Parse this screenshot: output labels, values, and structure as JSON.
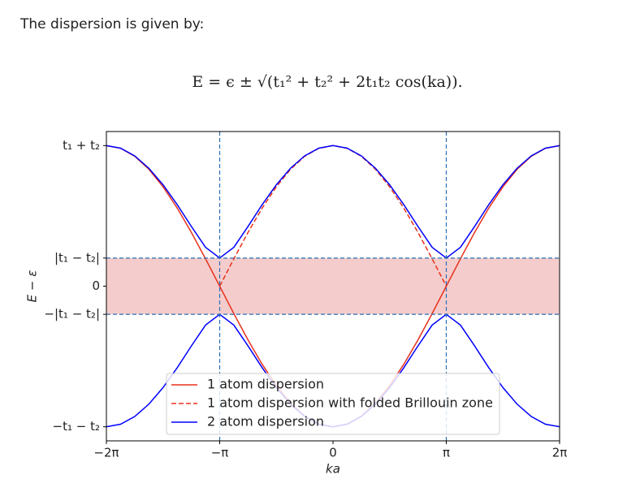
{
  "text": "The dispersion is given by:",
  "equation": "E = ϵ ± √(t₁² + t₂² + 2t₁t₂ cos(ka)).",
  "chart_data": {
    "type": "line",
    "xlabel": "ka",
    "ylabel": "E − ε",
    "x": [
      -6.283185,
      -5.890486,
      -5.497787,
      -5.105088,
      -4.712389,
      -4.31969,
      -3.926991,
      -3.534292,
      -3.141593,
      -2.748894,
      -2.356194,
      -1.963495,
      -1.570796,
      -1.178097,
      -0.785398,
      -0.392699,
      0,
      0.392699,
      0.785398,
      1.178097,
      1.570796,
      1.963495,
      2.356194,
      2.748894,
      3.141593,
      3.534292,
      3.926991,
      4.31969,
      4.712389,
      5.105088,
      5.497787,
      5.890486,
      6.283185
    ],
    "series": [
      {
        "name": "1 atom dispersion",
        "color": "#e8311c",
        "linestyle": "solid",
        "values": [
          1,
          0.98079,
          0.92388,
          0.83147,
          0.70711,
          0.55557,
          0.38268,
          0.19509,
          0,
          -0.19509,
          -0.38268,
          -0.55557,
          -0.70711,
          -0.83147,
          -0.92388,
          -0.98079,
          -1,
          -0.98079,
          -0.92388,
          -0.83147,
          -0.70711,
          -0.55557,
          -0.38268,
          -0.19509,
          0,
          0.19509,
          0.38268,
          0.55557,
          0.70711,
          0.83147,
          0.92388,
          0.98079,
          1
        ]
      },
      {
        "name": "1 atom dispersion with folded Brillouin zone",
        "color": "#e8311c",
        "linestyle": "dashed",
        "values": [
          null,
          null,
          null,
          null,
          null,
          null,
          null,
          null,
          0,
          0.19509,
          0.38268,
          0.55557,
          0.70711,
          0.83147,
          0.92388,
          0.98079,
          1,
          0.98079,
          0.92388,
          0.83147,
          0.70711,
          0.55557,
          0.38268,
          0.19509,
          0,
          null,
          null,
          null,
          null,
          null,
          null,
          null,
          null
        ]
      },
      {
        "name": "2 atom dispersion",
        "color": "#0000ff",
        "linestyle": "solid",
        "values": [
          1,
          0.98156,
          0.92704,
          0.83886,
          0.72111,
          0.57992,
          0.42496,
          0.27666,
          0.2,
          0.27666,
          0.42496,
          0.57992,
          0.72111,
          0.83886,
          0.92704,
          0.98156,
          1,
          0.98156,
          0.92704,
          0.83886,
          0.72111,
          0.57992,
          0.42496,
          0.27666,
          0.2,
          0.27666,
          0.42496,
          0.57992,
          0.72111,
          0.83886,
          0.92704,
          0.98156,
          1
        ]
      },
      {
        "color": "#0000ff",
        "linestyle": "solid",
        "values": [
          -1,
          -0.98156,
          -0.92704,
          -0.83886,
          -0.72111,
          -0.57992,
          -0.42496,
          -0.27666,
          -0.2,
          -0.27666,
          -0.42496,
          -0.57992,
          -0.72111,
          -0.83886,
          -0.92704,
          -0.98156,
          -1,
          -0.98156,
          -0.92704,
          -0.83886,
          -0.72111,
          -0.57992,
          -0.42496,
          -0.27666,
          -0.2,
          -0.27666,
          -0.42496,
          -0.57992,
          -0.72111,
          -0.83886,
          -0.92704,
          -0.98156,
          -1
        ]
      }
    ],
    "band": [
      -0.2,
      0.2
    ],
    "band_color": "#f4cccc",
    "hlines": [
      -0.2,
      0.2
    ],
    "vlines": [
      -3.141593,
      3.141593
    ],
    "ref_color": "#2a6fb5",
    "xlim": [
      -6.283185,
      6.283185
    ],
    "xticks": [
      {
        "value": -6.283185,
        "label": "−2π"
      },
      {
        "value": -3.141593,
        "label": "−π"
      },
      0,
      {
        "value": 3.141593,
        "label": "π"
      },
      {
        "value": 6.283185,
        "label": "2π"
      }
    ],
    "ylim": [
      -1.1,
      1.1
    ],
    "yticks": [
      {
        "value": -1,
        "label": "−t₁ − t₂"
      },
      {
        "value": -0.2,
        "label": "−|t₁ − t₂|"
      },
      0,
      {
        "value": 0.2,
        "label": "|t₁ − t₂|"
      },
      {
        "value": 1,
        "label": "t₁ + t₂"
      }
    ],
    "grid": false,
    "legend": "lower center"
  }
}
